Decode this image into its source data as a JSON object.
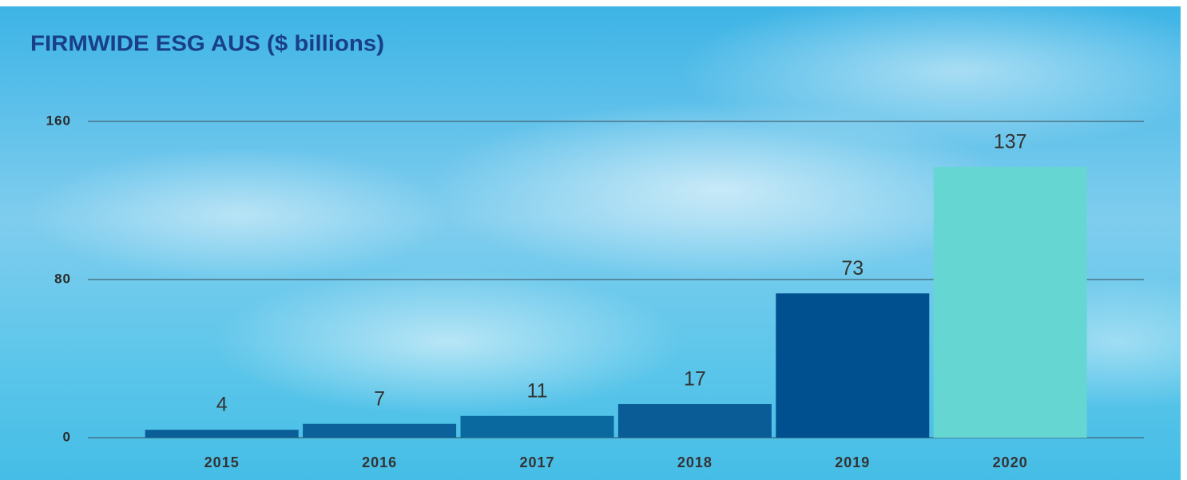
{
  "chart_data": {
    "type": "bar",
    "title": "FIRMWIDE ESG AUS ($ billions)",
    "categories": [
      "2015",
      "2016",
      "2017",
      "2018",
      "2019",
      "2020"
    ],
    "values": [
      4,
      7,
      11,
      17,
      73,
      137
    ],
    "colors": [
      "#0b5f98",
      "#0b6199",
      "#0a6a9f",
      "#0a5c96",
      "#00508f",
      "#66d6d2"
    ],
    "ylim": [
      0,
      160
    ],
    "yticks": [
      0,
      80,
      160
    ],
    "grid": true
  }
}
